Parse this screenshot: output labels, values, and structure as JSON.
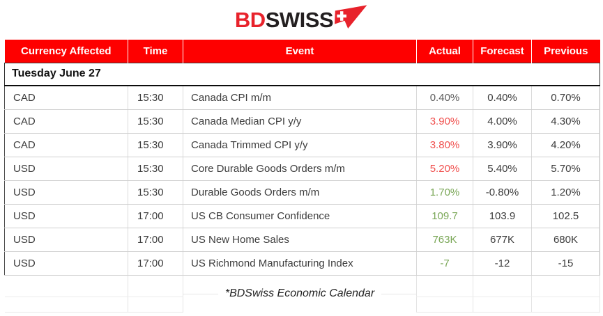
{
  "logo": {
    "bd": "BD",
    "swiss": "SWISS",
    "arrow_icon": "paper-plane-swiss-cross-icon"
  },
  "table": {
    "columns": [
      "Currency Affected",
      "Time",
      "Event",
      "Actual",
      "Forecast",
      "Previous"
    ],
    "date_header": "Tuesday June 27",
    "rows": [
      {
        "currency": "CAD",
        "time": "15:30",
        "event": "Canada CPI m/m",
        "actual": "0.40%",
        "actual_color": "neutral",
        "forecast": "0.40%",
        "previous": "0.70%"
      },
      {
        "currency": "CAD",
        "time": "15:30",
        "event": "Canada Median CPI y/y",
        "actual": "3.90%",
        "actual_color": "negative",
        "forecast": "4.00%",
        "previous": "4.30%"
      },
      {
        "currency": "CAD",
        "time": "15:30",
        "event": "Canada Trimmed CPI y/y",
        "actual": "3.80%",
        "actual_color": "negative",
        "forecast": "3.90%",
        "previous": "4.20%"
      },
      {
        "currency": "USD",
        "time": "15:30",
        "event": "Core Durable Goods Orders m/m",
        "actual": "5.20%",
        "actual_color": "negative",
        "forecast": "5.40%",
        "previous": "5.70%"
      },
      {
        "currency": "USD",
        "time": "15:30",
        "event": "Durable Goods Orders m/m",
        "actual": "1.70%",
        "actual_color": "positive",
        "forecast": "-0.80%",
        "previous": "1.20%"
      },
      {
        "currency": "USD",
        "time": "17:00",
        "event": "US CB Consumer Confidence",
        "actual": "109.7",
        "actual_color": "positive",
        "forecast": "103.9",
        "previous": "102.5"
      },
      {
        "currency": "USD",
        "time": "17:00",
        "event": "US New Home Sales",
        "actual": "763K",
        "actual_color": "positive",
        "forecast": "677K",
        "previous": "680K"
      },
      {
        "currency": "USD",
        "time": "17:00",
        "event": "US Richmond Manufacturing Index",
        "actual": "-7",
        "actual_color": "positive",
        "forecast": "-12",
        "previous": "-15"
      }
    ],
    "footer_note": "*BDSwiss Economic Calendar"
  },
  "colors": {
    "header_bg": "#fe0000",
    "header_text": "#ffffff",
    "positive": "#7aa757",
    "negative": "#f0504e",
    "neutral": "#5d5d5d",
    "logo_red": "#e8222b",
    "logo_dark": "#231f20"
  }
}
